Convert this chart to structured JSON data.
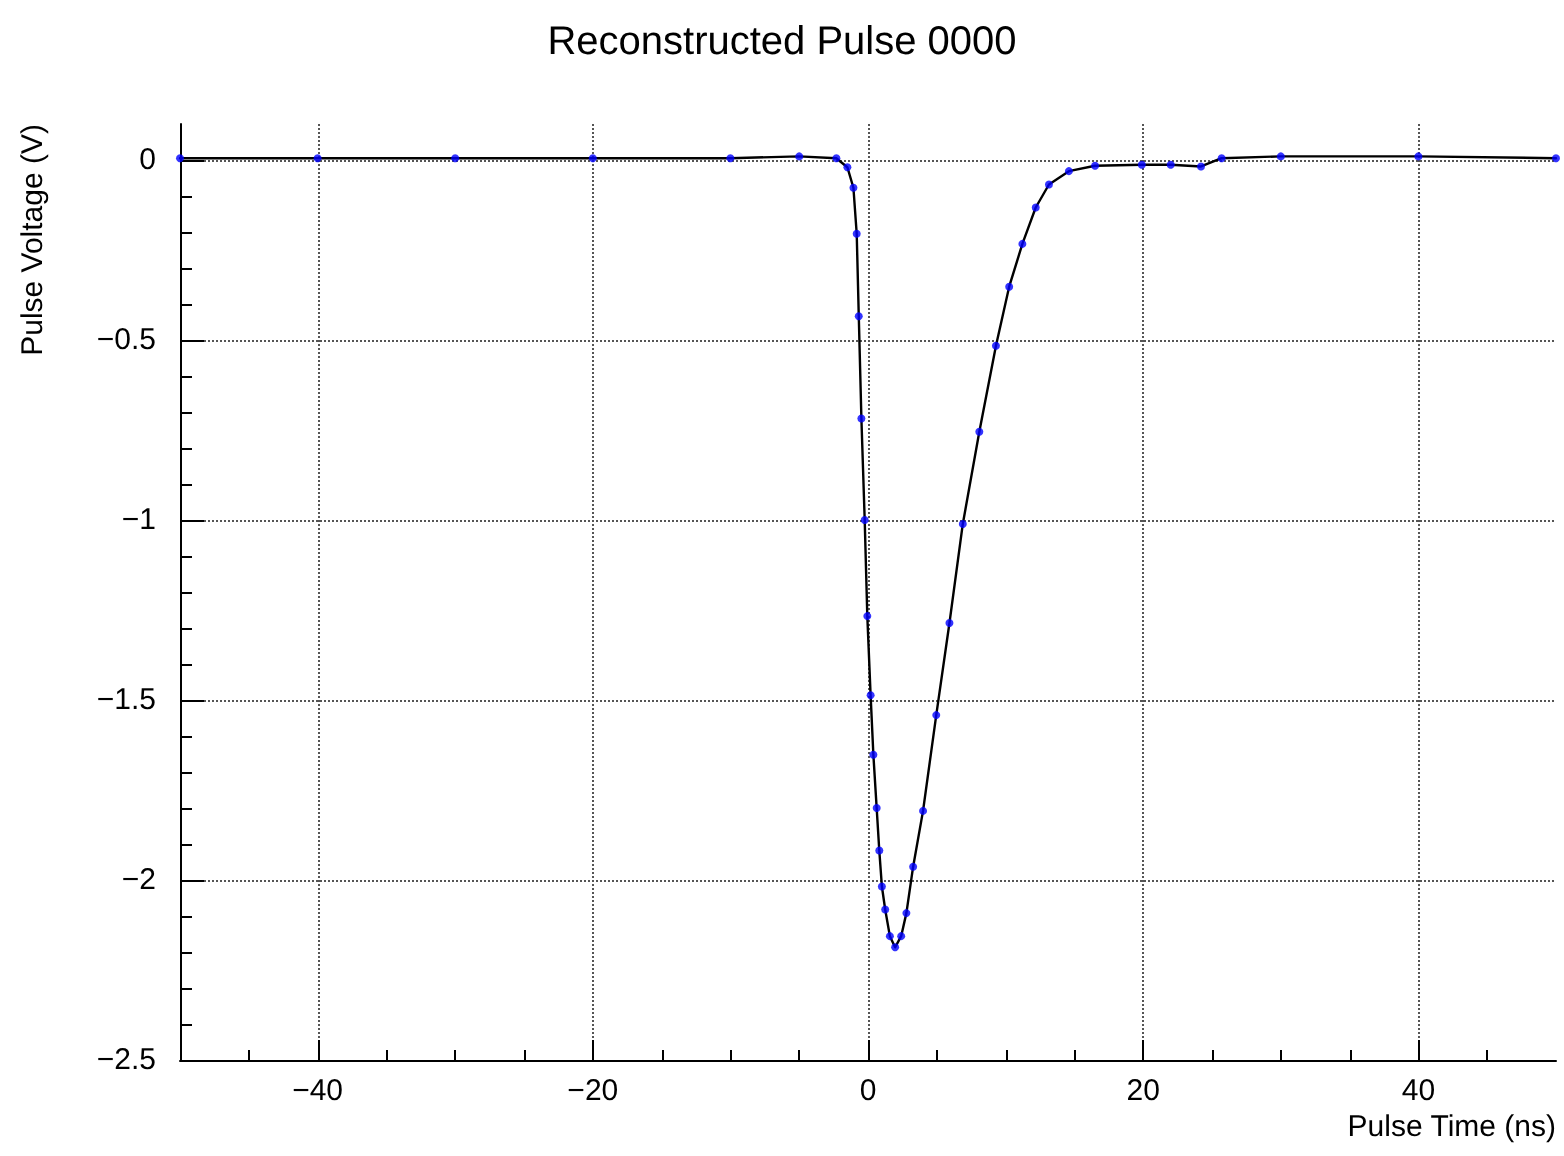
{
  "chart_data": {
    "type": "line",
    "title": "Reconstructed Pulse 0000",
    "xlabel": "Pulse Time (ns)",
    "ylabel": "Pulse Voltage (V)",
    "x": [
      -50,
      -40,
      -30,
      -20,
      -10,
      -5,
      -2.3,
      -1.5,
      -1.06,
      -0.82,
      -0.67,
      -0.48,
      -0.24,
      -0.05,
      0.19,
      0.39,
      0.63,
      0.82,
      1.01,
      1.25,
      1.59,
      1.97,
      2.41,
      2.79,
      3.28,
      4.0,
      4.96,
      5.92,
      6.89,
      8.09,
      9.3,
      10.26,
      11.22,
      12.19,
      13.15,
      14.6,
      16.5,
      19.9,
      22,
      24.2,
      25.7,
      30,
      40,
      50
    ],
    "series": [
      {
        "type": "scatter",
        "color": "#0000ff",
        "marker": "circle",
        "values": [
          0.005,
          0.005,
          0.005,
          0.005,
          0.005,
          0.01,
          0.005,
          -0.02,
          -0.077,
          -0.205,
          -0.434,
          -0.718,
          -1.0,
          -1.267,
          -1.487,
          -1.652,
          -1.8,
          -1.918,
          -2.018,
          -2.082,
          -2.156,
          -2.187,
          -2.156,
          -2.092,
          -1.963,
          -1.808,
          -1.542,
          -1.286,
          -1.011,
          -0.755,
          -0.516,
          -0.352,
          -0.233,
          -0.132,
          -0.068,
          -0.031,
          -0.016,
          -0.013,
          -0.013,
          -0.018,
          0.005,
          0.01,
          0.01,
          0.005
        ]
      },
      {
        "color": "#000000",
        "marker": "none",
        "line_style": "solid",
        "values": [
          0.005,
          0.005,
          0.005,
          0.005,
          0.005,
          0.01,
          0.005,
          -0.02,
          -0.077,
          -0.205,
          -0.434,
          -0.718,
          -1.0,
          -1.267,
          -1.487,
          -1.652,
          -1.8,
          -1.918,
          -2.018,
          -2.082,
          -2.156,
          -2.187,
          -2.156,
          -2.092,
          -1.963,
          -1.808,
          -1.542,
          -1.286,
          -1.011,
          -0.755,
          -0.516,
          -0.352,
          -0.233,
          -0.132,
          -0.068,
          -0.031,
          -0.016,
          -0.013,
          -0.013,
          -0.018,
          0.005,
          0.01,
          0.01,
          0.005
        ]
      }
    ],
    "xlim": [
      -50,
      50
    ],
    "xticks": [
      -40,
      -20,
      0,
      20,
      40
    ],
    "ylim": [
      -2.5,
      0.1
    ],
    "yticks": [
      -2.5,
      -2,
      -1.5,
      -1,
      -0.5,
      0
    ],
    "grid": true
  }
}
